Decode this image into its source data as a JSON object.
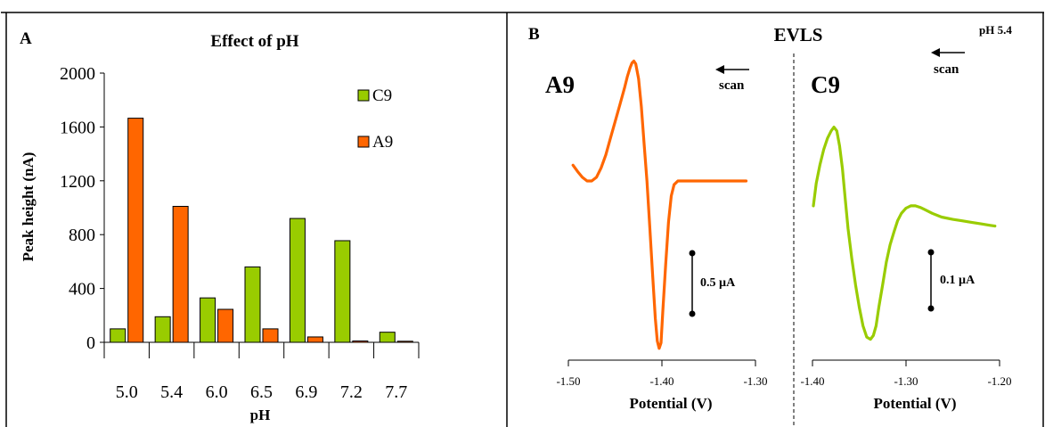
{
  "panels": {
    "a": {
      "letter": "A",
      "chart_data": {
        "type": "bar",
        "title": "Effect of pH",
        "xlabel": "pH",
        "ylabel": "Peak height (nA)",
        "ylim": [
          0,
          2000
        ],
        "yticks": [
          "0",
          "400",
          "800",
          "1200",
          "1600",
          "2000"
        ],
        "ytick_values": [
          0,
          400,
          800,
          1200,
          1600,
          2000
        ],
        "categories": [
          "5.0",
          "5.4",
          "6.0",
          "6.5",
          "6.9",
          "7.2",
          "7.7"
        ],
        "series": [
          {
            "name": "C9",
            "color": "#99cc00",
            "values": [
              100,
              190,
              330,
              560,
              920,
              755,
              75
            ]
          },
          {
            "name": "A9",
            "color": "#ff6600",
            "values": [
              1665,
              1010,
              245,
              100,
              40,
              10,
              8
            ]
          }
        ],
        "legend_placement": "top-right",
        "grid": false
      }
    },
    "b": {
      "letter": "B",
      "title": "EVLS",
      "condition": "pH 5.4",
      "scan_label": "scan",
      "charts": [
        {
          "type": "line",
          "label": "A9",
          "color": "#ff6600",
          "xlabel": "Potential (V)",
          "xlim": [
            -1.5,
            -1.3
          ],
          "xticks": [
            "-1.50",
            "-1.40",
            "-1.30"
          ],
          "xtick_values": [
            -1.5,
            -1.4,
            -1.3
          ],
          "y_units": "µA",
          "scale_bar": "0.5 µA",
          "scale_bar_value": 0.5,
          "ylim": [
            -0.92,
            0.7
          ],
          "points": [
            [
              -1.495,
              0.085
            ],
            [
              -1.49,
              0.05
            ],
            [
              -1.485,
              0.02
            ],
            [
              -1.48,
              0.0
            ],
            [
              -1.475,
              0.0
            ],
            [
              -1.47,
              0.02
            ],
            [
              -1.465,
              0.07
            ],
            [
              -1.46,
              0.14
            ],
            [
              -1.455,
              0.23
            ],
            [
              -1.45,
              0.32
            ],
            [
              -1.445,
              0.41
            ],
            [
              -1.44,
              0.5
            ],
            [
              -1.437,
              0.56
            ],
            [
              -1.434,
              0.61
            ],
            [
              -1.432,
              0.635
            ],
            [
              -1.43,
              0.645
            ],
            [
              -1.428,
              0.63
            ],
            [
              -1.425,
              0.55
            ],
            [
              -1.422,
              0.4
            ],
            [
              -1.419,
              0.2
            ],
            [
              -1.416,
              0.0
            ],
            [
              -1.413,
              -0.25
            ],
            [
              -1.41,
              -0.5
            ],
            [
              -1.407,
              -0.74
            ],
            [
              -1.405,
              -0.86
            ],
            [
              -1.403,
              -0.9
            ],
            [
              -1.401,
              -0.87
            ],
            [
              -1.399,
              -0.7
            ],
            [
              -1.396,
              -0.45
            ],
            [
              -1.393,
              -0.22
            ],
            [
              -1.39,
              -0.08
            ],
            [
              -1.387,
              -0.02
            ],
            [
              -1.383,
              0.0
            ],
            [
              -1.378,
              0.0
            ],
            [
              -1.37,
              0.0
            ],
            [
              -1.35,
              0.0
            ],
            [
              -1.33,
              0.0
            ],
            [
              -1.31,
              0.0
            ]
          ]
        },
        {
          "type": "line",
          "label": "C9",
          "color": "#99cc00",
          "xlabel": "Potential (V)",
          "xlim": [
            -1.4,
            -1.2
          ],
          "xticks": [
            "-1.40",
            "-1.30",
            "-1.20"
          ],
          "xtick_values": [
            -1.4,
            -1.3,
            -1.2
          ],
          "y_units": "µA",
          "scale_bar": "0.1 µA",
          "scale_bar_value": 0.1,
          "ylim": [
            -0.152,
            0.15
          ],
          "points": [
            [
              -1.399,
              0.03
            ],
            [
              -1.396,
              0.06
            ],
            [
              -1.392,
              0.085
            ],
            [
              -1.388,
              0.105
            ],
            [
              -1.384,
              0.12
            ],
            [
              -1.38,
              0.13
            ],
            [
              -1.377,
              0.135
            ],
            [
              -1.374,
              0.13
            ],
            [
              -1.371,
              0.11
            ],
            [
              -1.368,
              0.08
            ],
            [
              -1.365,
              0.04
            ],
            [
              -1.362,
              0.0
            ],
            [
              -1.358,
              -0.04
            ],
            [
              -1.354,
              -0.075
            ],
            [
              -1.35,
              -0.105
            ],
            [
              -1.346,
              -0.13
            ],
            [
              -1.342,
              -0.145
            ],
            [
              -1.338,
              -0.148
            ],
            [
              -1.335,
              -0.143
            ],
            [
              -1.332,
              -0.13
            ],
            [
              -1.329,
              -0.105
            ],
            [
              -1.325,
              -0.075
            ],
            [
              -1.321,
              -0.045
            ],
            [
              -1.317,
              -0.022
            ],
            [
              -1.313,
              -0.005
            ],
            [
              -1.309,
              0.01
            ],
            [
              -1.305,
              0.02
            ],
            [
              -1.3,
              0.027
            ],
            [
              -1.295,
              0.03
            ],
            [
              -1.29,
              0.03
            ],
            [
              -1.285,
              0.028
            ],
            [
              -1.28,
              0.025
            ],
            [
              -1.272,
              0.02
            ],
            [
              -1.262,
              0.015
            ],
            [
              -1.25,
              0.012
            ],
            [
              -1.24,
              0.01
            ],
            [
              -1.23,
              0.008
            ],
            [
              -1.22,
              0.006
            ],
            [
              -1.21,
              0.004
            ],
            [
              -1.205,
              0.003
            ]
          ]
        }
      ]
    }
  }
}
